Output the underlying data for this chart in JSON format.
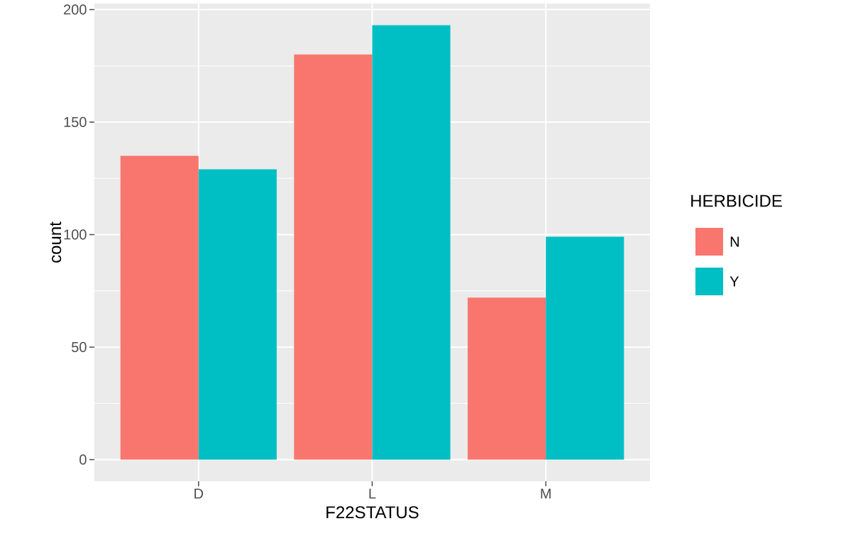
{
  "chart_data": {
    "type": "bar",
    "xlabel": "F22STATUS",
    "ylabel": "count",
    "legend_title": "HERBICIDE",
    "categories": [
      "D",
      "L",
      "M"
    ],
    "series": [
      {
        "name": "N",
        "color": "#f8766d",
        "values": [
          135,
          180,
          72
        ]
      },
      {
        "name": "Y",
        "color": "#00bfc4",
        "values": [
          129,
          193,
          99
        ]
      }
    ],
    "ylim": [
      -9.65,
      202.65
    ],
    "yticks": [
      0,
      50,
      100,
      150,
      200
    ],
    "grid": true,
    "legend": "right"
  }
}
